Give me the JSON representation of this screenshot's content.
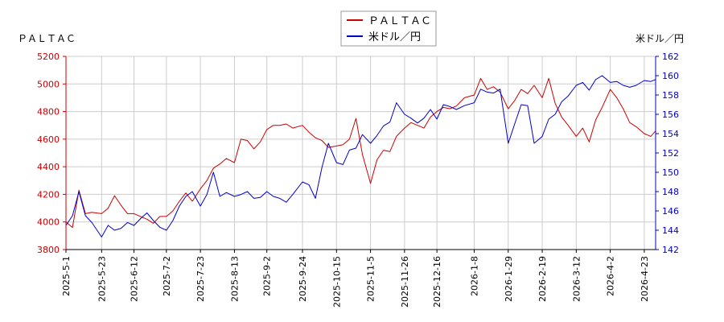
{
  "chart_data": {
    "type": "line",
    "left_axis_label": "ＰＡＬＴＡＣ",
    "right_axis_label": "米ドル／円",
    "legend": [
      {
        "name": "ＰＡＬＴＡＣ",
        "color": "#cc0000"
      },
      {
        "name": "米ドル／円",
        "color": "#0000cc"
      }
    ],
    "legend_position": "top-center",
    "grid": true,
    "x_range": [
      "2025-05-01",
      "2026-04-30"
    ],
    "x_ticks": [
      "2025-5-1",
      "2025-5-23",
      "2025-6-12",
      "2025-7-2",
      "2025-7-23",
      "2025-8-13",
      "2025-9-2",
      "2025-9-24",
      "2025-10-15",
      "2025-11-5",
      "2025-11-26",
      "2025-12-16",
      "2026-1-8",
      "2026-1-29",
      "2026-2-19",
      "2026-3-12",
      "2026-4-2",
      "2026-4-23"
    ],
    "y_left": {
      "min": 3800,
      "max": 5200,
      "ticks": [
        3800,
        4000,
        4200,
        4400,
        4600,
        4800,
        5000,
        5200
      ],
      "color": "#cc0000"
    },
    "y_right": {
      "min": 142,
      "max": 162,
      "ticks": [
        142,
        144,
        146,
        148,
        150,
        152,
        154,
        156,
        158,
        160,
        162
      ],
      "color": "#0000cc"
    },
    "series": [
      {
        "name": "ＰＡＬＴＡＣ",
        "axis": "left",
        "color": "#cc0000",
        "data": [
          [
            "2025-05-01",
            4000
          ],
          [
            "2025-05-05",
            3960
          ],
          [
            "2025-05-09",
            4230
          ],
          [
            "2025-05-13",
            4060
          ],
          [
            "2025-05-17",
            4070
          ],
          [
            "2025-05-23",
            4060
          ],
          [
            "2025-05-27",
            4100
          ],
          [
            "2025-05-31",
            4190
          ],
          [
            "2025-06-04",
            4120
          ],
          [
            "2025-06-08",
            4060
          ],
          [
            "2025-06-12",
            4060
          ],
          [
            "2025-06-16",
            4040
          ],
          [
            "2025-06-20",
            4020
          ],
          [
            "2025-06-24",
            3990
          ],
          [
            "2025-06-28",
            4040
          ],
          [
            "2025-07-02",
            4040
          ],
          [
            "2025-07-06",
            4080
          ],
          [
            "2025-07-10",
            4150
          ],
          [
            "2025-07-14",
            4210
          ],
          [
            "2025-07-18",
            4150
          ],
          [
            "2025-07-23",
            4240
          ],
          [
            "2025-07-27",
            4300
          ],
          [
            "2025-07-31",
            4390
          ],
          [
            "2025-08-04",
            4420
          ],
          [
            "2025-08-08",
            4460
          ],
          [
            "2025-08-13",
            4430
          ],
          [
            "2025-08-17",
            4600
          ],
          [
            "2025-08-21",
            4590
          ],
          [
            "2025-08-25",
            4530
          ],
          [
            "2025-08-29",
            4580
          ],
          [
            "2025-09-02",
            4670
          ],
          [
            "2025-09-06",
            4700
          ],
          [
            "2025-09-10",
            4700
          ],
          [
            "2025-09-14",
            4710
          ],
          [
            "2025-09-18",
            4680
          ],
          [
            "2025-09-24",
            4700
          ],
          [
            "2025-09-28",
            4650
          ],
          [
            "2025-10-02",
            4610
          ],
          [
            "2025-10-06",
            4590
          ],
          [
            "2025-10-10",
            4540
          ],
          [
            "2025-10-15",
            4550
          ],
          [
            "2025-10-19",
            4560
          ],
          [
            "2025-10-23",
            4600
          ],
          [
            "2025-10-27",
            4750
          ],
          [
            "2025-10-31",
            4490
          ],
          [
            "2025-11-05",
            4280
          ],
          [
            "2025-11-09",
            4450
          ],
          [
            "2025-11-13",
            4520
          ],
          [
            "2025-11-17",
            4510
          ],
          [
            "2025-11-21",
            4620
          ],
          [
            "2025-11-26",
            4680
          ],
          [
            "2025-11-30",
            4720
          ],
          [
            "2025-12-04",
            4700
          ],
          [
            "2025-12-08",
            4680
          ],
          [
            "2025-12-12",
            4760
          ],
          [
            "2025-12-16",
            4800
          ],
          [
            "2025-12-20",
            4830
          ],
          [
            "2025-12-24",
            4820
          ],
          [
            "2025-12-28",
            4840
          ],
          [
            "2026-01-02",
            4900
          ],
          [
            "2026-01-08",
            4920
          ],
          [
            "2026-01-12",
            5040
          ],
          [
            "2026-01-16",
            4960
          ],
          [
            "2026-01-20",
            4980
          ],
          [
            "2026-01-24",
            4940
          ],
          [
            "2026-01-29",
            4820
          ],
          [
            "2026-02-02",
            4880
          ],
          [
            "2026-02-06",
            4960
          ],
          [
            "2026-02-10",
            4930
          ],
          [
            "2026-02-14",
            4990
          ],
          [
            "2026-02-19",
            4900
          ],
          [
            "2026-02-23",
            5040
          ],
          [
            "2026-02-27",
            4860
          ],
          [
            "2026-03-03",
            4760
          ],
          [
            "2026-03-07",
            4700
          ],
          [
            "2026-03-12",
            4620
          ],
          [
            "2026-03-16",
            4680
          ],
          [
            "2026-03-20",
            4580
          ],
          [
            "2026-03-24",
            4740
          ],
          [
            "2026-03-28",
            4830
          ],
          [
            "2026-04-02",
            4960
          ],
          [
            "2026-04-06",
            4900
          ],
          [
            "2026-04-10",
            4820
          ],
          [
            "2026-04-14",
            4720
          ],
          [
            "2026-04-18",
            4690
          ],
          [
            "2026-04-23",
            4640
          ],
          [
            "2026-04-27",
            4620
          ],
          [
            "2026-04-30",
            4660
          ]
        ]
      },
      {
        "name": "米ドル／円",
        "axis": "right",
        "color": "#0000cc",
        "data": [
          [
            "2025-05-01",
            144.5
          ],
          [
            "2025-05-05",
            145.5
          ],
          [
            "2025-05-09",
            148.0
          ],
          [
            "2025-05-13",
            145.5
          ],
          [
            "2025-05-17",
            144.8
          ],
          [
            "2025-05-23",
            143.3
          ],
          [
            "2025-05-27",
            144.5
          ],
          [
            "2025-05-31",
            144.0
          ],
          [
            "2025-06-04",
            144.2
          ],
          [
            "2025-06-08",
            144.8
          ],
          [
            "2025-06-12",
            144.5
          ],
          [
            "2025-06-16",
            145.2
          ],
          [
            "2025-06-20",
            145.8
          ],
          [
            "2025-06-24",
            145.0
          ],
          [
            "2025-06-28",
            144.3
          ],
          [
            "2025-07-02",
            144.0
          ],
          [
            "2025-07-06",
            145.0
          ],
          [
            "2025-07-10",
            146.5
          ],
          [
            "2025-07-14",
            147.5
          ],
          [
            "2025-07-18",
            148.0
          ],
          [
            "2025-07-23",
            146.5
          ],
          [
            "2025-07-27",
            147.7
          ],
          [
            "2025-07-31",
            150.0
          ],
          [
            "2025-08-04",
            147.5
          ],
          [
            "2025-08-08",
            147.9
          ],
          [
            "2025-08-13",
            147.5
          ],
          [
            "2025-08-17",
            147.7
          ],
          [
            "2025-08-21",
            148.0
          ],
          [
            "2025-08-25",
            147.3
          ],
          [
            "2025-08-29",
            147.4
          ],
          [
            "2025-09-02",
            148.0
          ],
          [
            "2025-09-06",
            147.5
          ],
          [
            "2025-09-10",
            147.3
          ],
          [
            "2025-09-14",
            146.9
          ],
          [
            "2025-09-18",
            147.7
          ],
          [
            "2025-09-24",
            149.0
          ],
          [
            "2025-09-28",
            148.7
          ],
          [
            "2025-10-02",
            147.3
          ],
          [
            "2025-10-06",
            150.5
          ],
          [
            "2025-10-10",
            153.0
          ],
          [
            "2025-10-15",
            151.0
          ],
          [
            "2025-10-19",
            150.8
          ],
          [
            "2025-10-23",
            152.3
          ],
          [
            "2025-10-27",
            152.5
          ],
          [
            "2025-10-31",
            153.9
          ],
          [
            "2025-11-05",
            153.0
          ],
          [
            "2025-11-09",
            153.8
          ],
          [
            "2025-11-13",
            154.8
          ],
          [
            "2025-11-17",
            155.2
          ],
          [
            "2025-11-21",
            157.2
          ],
          [
            "2025-11-26",
            156.0
          ],
          [
            "2025-11-30",
            155.6
          ],
          [
            "2025-12-04",
            155.1
          ],
          [
            "2025-12-08",
            155.6
          ],
          [
            "2025-12-12",
            156.5
          ],
          [
            "2025-12-16",
            155.5
          ],
          [
            "2025-12-20",
            157.0
          ],
          [
            "2025-12-24",
            156.8
          ],
          [
            "2025-12-28",
            156.5
          ],
          [
            "2026-01-02",
            156.9
          ],
          [
            "2026-01-08",
            157.2
          ],
          [
            "2026-01-12",
            158.6
          ],
          [
            "2026-01-16",
            158.3
          ],
          [
            "2026-01-20",
            158.2
          ],
          [
            "2026-01-24",
            158.6
          ],
          [
            "2026-01-29",
            153.0
          ],
          [
            "2026-02-02",
            155.0
          ],
          [
            "2026-02-06",
            157.0
          ],
          [
            "2026-02-10",
            156.9
          ],
          [
            "2026-02-14",
            153.0
          ],
          [
            "2026-02-19",
            153.7
          ],
          [
            "2026-02-23",
            155.5
          ],
          [
            "2026-02-27",
            156.0
          ],
          [
            "2026-03-03",
            157.3
          ],
          [
            "2026-03-07",
            157.9
          ],
          [
            "2026-03-12",
            159.0
          ],
          [
            "2026-03-16",
            159.3
          ],
          [
            "2026-03-20",
            158.5
          ],
          [
            "2026-03-24",
            159.6
          ],
          [
            "2026-03-28",
            160.0
          ],
          [
            "2026-04-02",
            159.3
          ],
          [
            "2026-04-06",
            159.4
          ],
          [
            "2026-04-10",
            159.0
          ],
          [
            "2026-04-14",
            158.8
          ],
          [
            "2026-04-18",
            159.0
          ],
          [
            "2026-04-23",
            159.5
          ],
          [
            "2026-04-27",
            159.4
          ],
          [
            "2026-04-30",
            159.6
          ]
        ]
      }
    ]
  }
}
